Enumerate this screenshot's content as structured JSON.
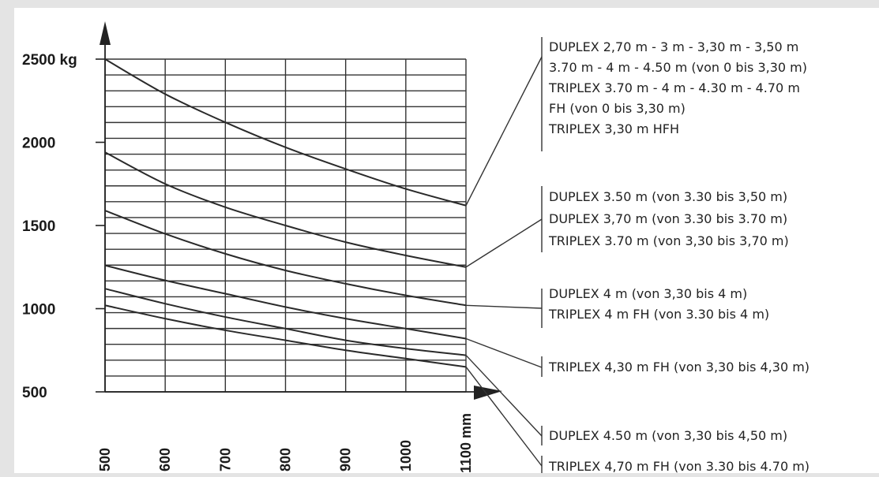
{
  "chart_data": {
    "type": "line",
    "x_ticks": [
      "500",
      "600",
      "700",
      "800",
      "900",
      "1000",
      "1100 mm"
    ],
    "y_ticks": [
      "500",
      "1000",
      "1500",
      "2000",
      "2500 kg"
    ],
    "xlim": [
      500,
      1100
    ],
    "ylim": [
      500,
      2500
    ],
    "grid": true,
    "series": [
      {
        "x": [
          500,
          600,
          700,
          800,
          900,
          1000,
          1100
        ],
        "values": [
          2500,
          2290,
          2120,
          1970,
          1840,
          1720,
          1620
        ]
      },
      {
        "x": [
          500,
          600,
          700,
          800,
          900,
          1000,
          1100
        ],
        "values": [
          1940,
          1750,
          1610,
          1500,
          1400,
          1320,
          1250
        ]
      },
      {
        "x": [
          500,
          600,
          700,
          800,
          900,
          1000,
          1100
        ],
        "values": [
          1590,
          1450,
          1330,
          1230,
          1150,
          1080,
          1020
        ]
      },
      {
        "x": [
          500,
          600,
          700,
          800,
          900,
          1000,
          1100
        ],
        "values": [
          1260,
          1170,
          1090,
          1010,
          940,
          880,
          820
        ]
      },
      {
        "x": [
          500,
          600,
          700,
          800,
          900,
          1000,
          1100
        ],
        "values": [
          1120,
          1030,
          950,
          880,
          810,
          760,
          720
        ]
      },
      {
        "x": [
          500,
          600,
          700,
          800,
          900,
          1000,
          1100
        ],
        "values": [
          1020,
          940,
          870,
          810,
          750,
          700,
          650
        ]
      }
    ],
    "legend": [
      {
        "lines": [
          "DUPLEX 2,70 m - 3 m - 3,30 m - 3,50 m",
          "3.70 m - 4 m - 4.50 m (von 0 bis 3,30 m)",
          "TRIPLEX 3.70 m - 4 m - 4.30 m - 4.70 m",
          "FH (von 0 bis 3,30 m)",
          "TRIPLEX 3,30 m  HFH"
        ],
        "series": 0
      },
      {
        "lines": [
          "DUPLEX 3.50 m (von 3.30 bis 3,50 m)",
          "DUPLEX 3,70 m (von 3.30 bis 3.70 m)",
          "TRIPLEX 3.70 m (von 3,30 bis 3,70 m)"
        ],
        "series": 1
      },
      {
        "lines": [
          "DUPLEX 4 m (von 3,30 bis 4 m)",
          "TRIPLEX 4 m FH (von 3.30 bis 4 m)"
        ],
        "series": 2
      },
      {
        "lines": [
          "TRIPLEX 4,30 m FH (von 3,30 bis 4,30 m)"
        ],
        "series": 3
      },
      {
        "lines": [
          "DUPLEX 4.50 m (von 3,30 bis 4,50 m)"
        ],
        "series": 4
      },
      {
        "lines": [
          "TRIPLEX 4,70 m FH (von 3.30 bis 4.70 m)"
        ],
        "series": 5
      }
    ]
  }
}
